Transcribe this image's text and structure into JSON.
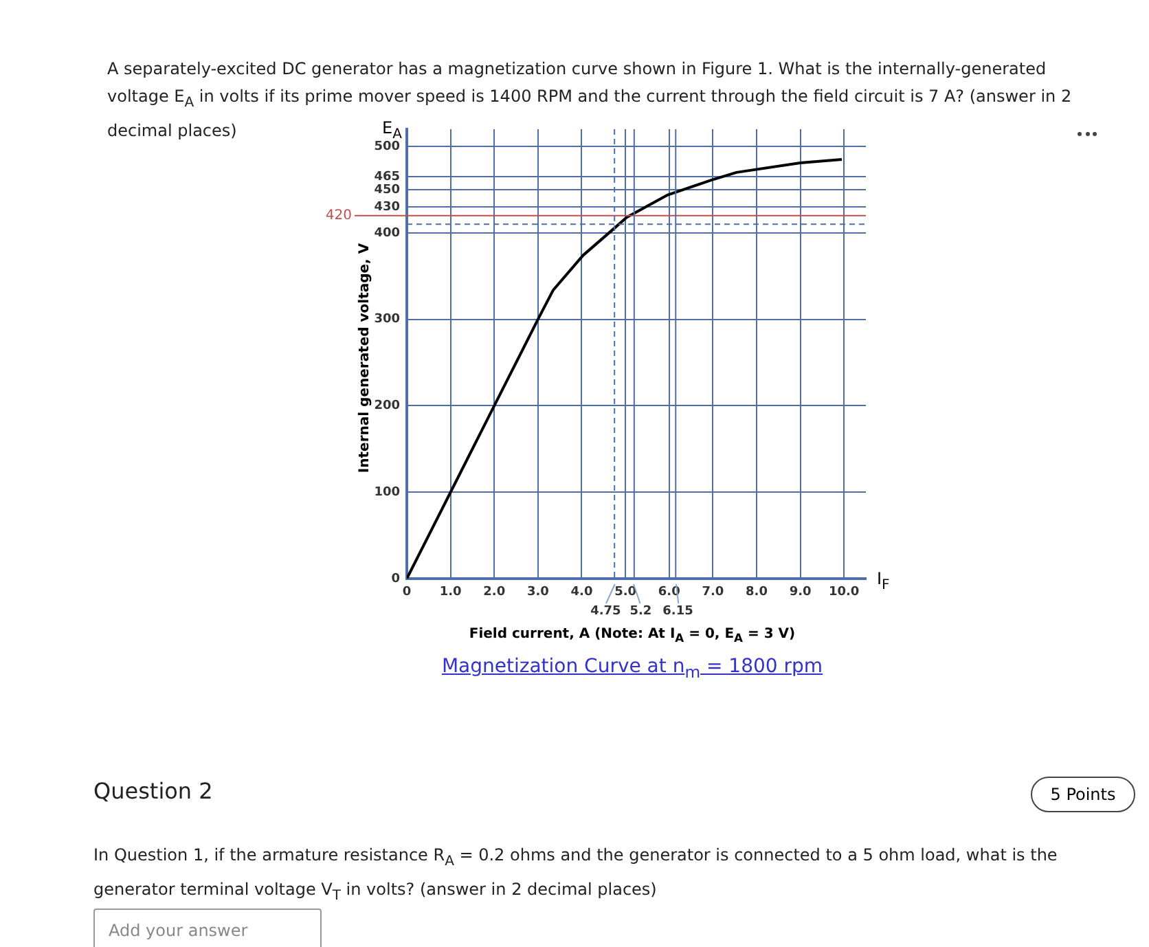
{
  "chart_data": {
    "type": "line",
    "title": "Magnetization Curve at n$_{m}$ = 1800 rpm",
    "xlabel": "Field current, A (Note: At I$_{A}$ = 0, E$_{A}$ = 3 V)",
    "ylabel": "Internal generated voltage, V",
    "annotations": [
      "A separately-excited DC generator has a magnetization curve shown in Figure 1. What is the internally-generated voltage E$_{A}$ in volts if its prime mover speed is 1400 RPM and the current through the field circuit is 7 A? (answer in 2 decimal places)",
      "Question 2",
      "5 Points",
      "In Question 1, if the armature resistance R$_{A}$ = 0.2 ohms and the generator is connected to a 5 ohm load, what is the generator terminal voltage V$_{T}$ in volts? (answer in 2 decimal places)",
      "Add your answer",
      "E$_{A}$",
      "I$_{F}$",
      {
        "text": "4.75",
        "x": 4.75,
        "y": 0
      },
      {
        "text": "5.2",
        "x": 5.2,
        "y": 0
      },
      {
        "text": "6.15",
        "x": 6.15,
        "y": 0
      }
    ],
    "series": [
      {
        "color": "#000000",
        "x": [
          0,
          1,
          2,
          3,
          3.35,
          4.03,
          4.76,
          5.03,
          5.97,
          6.96,
          7.54,
          9,
          9.95
        ],
        "values": [
          0,
          100,
          200,
          300,
          334,
          374,
          406,
          418,
          444,
          461,
          470,
          481,
          485
        ]
      }
    ],
    "xlim": [
      0,
      10.5
    ],
    "xticks": [
      0,
      {
        "value": 1,
        "label": "1.0"
      },
      {
        "value": 2,
        "label": "2.0"
      },
      {
        "value": 3,
        "label": "3.0"
      },
      {
        "value": 4,
        "label": "4.0"
      },
      {
        "value": 5,
        "label": "5.0"
      },
      {
        "value": 6,
        "label": "6.0"
      },
      {
        "value": 7,
        "label": "7.0"
      },
      {
        "value": 8,
        "label": "8.0"
      },
      {
        "value": 9,
        "label": "9.0"
      },
      {
        "value": 10,
        "label": "10.0"
      }
    ],
    "ylim": [
      0,
      520
    ],
    "yticks": [
      0,
      100,
      200,
      300,
      400,
      430,
      450,
      465,
      500
    ],
    "ref_lines": [
      {
        "axis": "y",
        "value": 420,
        "label": "420",
        "color": "#c0504d"
      },
      {
        "axis": "y",
        "value": 410,
        "color": "#4f6fa8",
        "line_style": "dashed"
      },
      {
        "axis": "x",
        "value": 4.75,
        "color": "#4f6fa8",
        "line_style": "dashed"
      },
      {
        "axis": "x",
        "value": 5.2,
        "color": "#4f6fa8"
      },
      {
        "axis": "x",
        "value": 6.15,
        "color": "#4f6fa8"
      }
    ],
    "grid": true,
    "legend": false
  }
}
